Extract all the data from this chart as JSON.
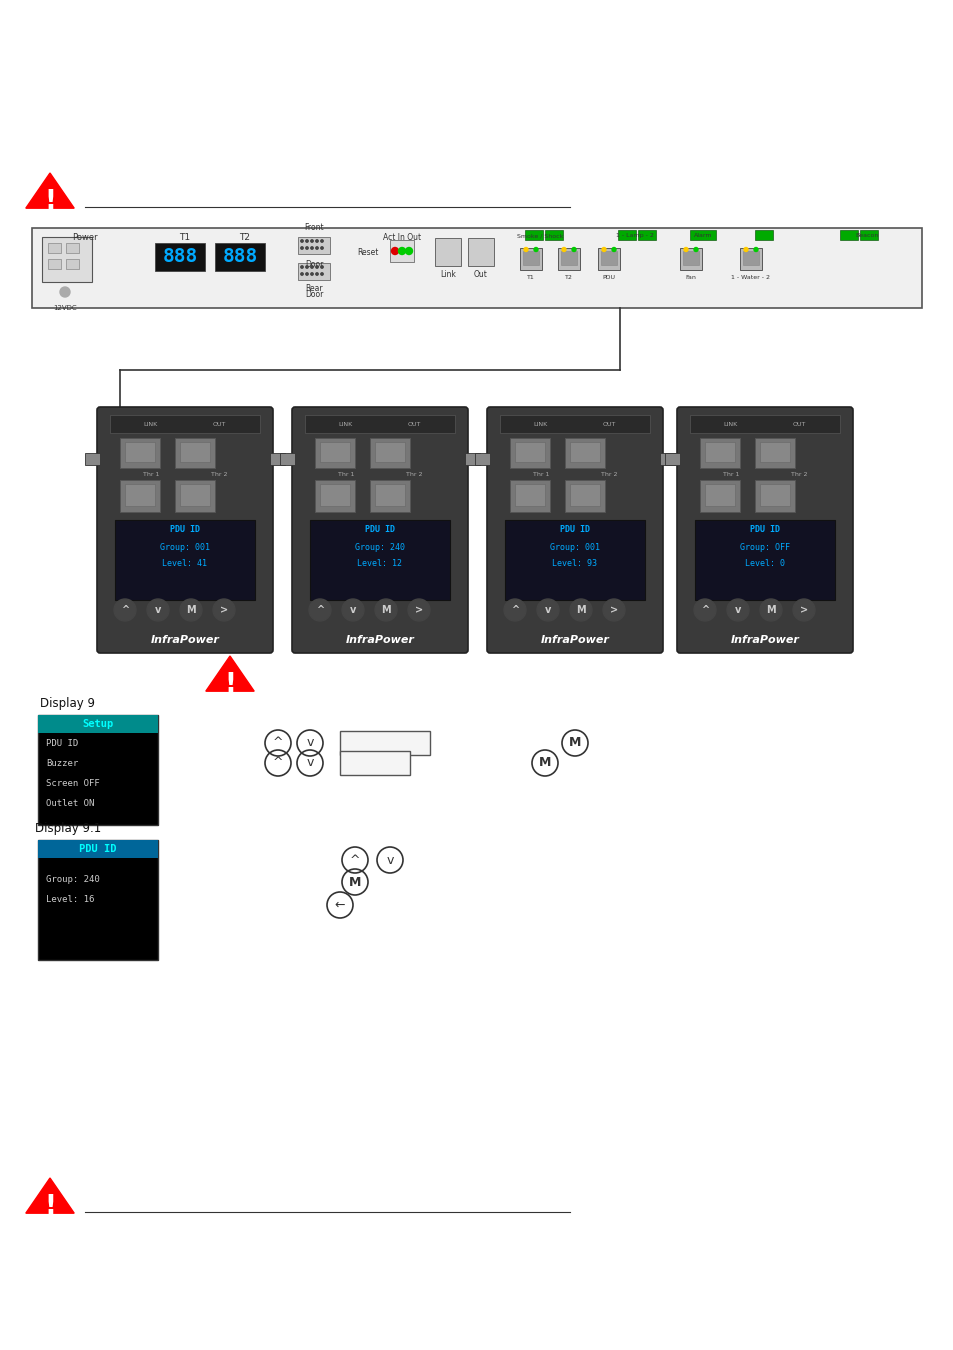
{
  "bg_color": "#ffffff",
  "warning_color": "#cc0000",
  "warning_triangle_color": "#ff0000",
  "pdu_display_bg": "#000000",
  "pdu_display_header_color": "#00bfff",
  "pdu_display_text_color": "#00bfff",
  "pdu_display_white": "#ffffff",
  "setup_header_color": "#00bfff",
  "line_color": "#000000",
  "display9_lines": [
    "Setup",
    "PDU ID",
    "Buzzer",
    "Screen OFF",
    "Outlet ON"
  ],
  "display91_lines": [
    "PDU ID",
    "Group: 240",
    "Level: 16"
  ],
  "pdu_labels": [
    "InfraPower",
    "InfraPower",
    "InfraPower",
    "InfraPower"
  ],
  "pdu_screen_lines": [
    [
      "PDU ID",
      "Group: 001",
      "Level: 41"
    ],
    [
      "PDU ID",
      "Group: 240",
      "Level: 12"
    ],
    [
      "PDU ID",
      "Group: 001",
      "Level: 93"
    ],
    [
      "PDU ID",
      "Group: OFF",
      "Level: 0"
    ]
  ]
}
